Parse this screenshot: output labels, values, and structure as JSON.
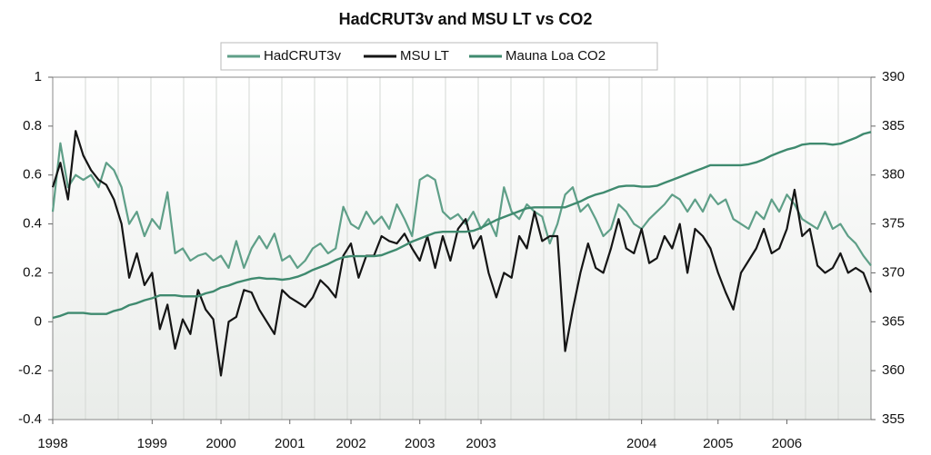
{
  "chart_data": {
    "type": "line",
    "title": "HadCRUT3v and MSU LT vs CO2",
    "xlim": [
      0,
      107
    ],
    "xticks": [
      {
        "value": 0,
        "label": "1998"
      },
      {
        "value": 13,
        "label": "1999"
      },
      {
        "value": 22,
        "label": "2000"
      },
      {
        "value": 31,
        "label": "2001"
      },
      {
        "value": 39,
        "label": "2002"
      },
      {
        "value": 48,
        "label": "2003"
      },
      {
        "value": 56,
        "label": "2003"
      },
      {
        "value": 77,
        "label": "2004"
      },
      {
        "value": 87,
        "label": "2005"
      },
      {
        "value": 96,
        "label": "2006"
      }
    ],
    "ylim": [
      -0.4,
      1
    ],
    "yticks": [
      -0.4,
      -0.2,
      0,
      0.2,
      0.4,
      0.6,
      0.8,
      1
    ],
    "y2lim": [
      355,
      390
    ],
    "y2ticks": [
      355,
      360,
      365,
      370,
      375,
      380,
      385,
      390
    ],
    "series": [
      {
        "name": "HadCRUT3v",
        "color": "#5f9f88",
        "values": [
          0.45,
          0.73,
          0.55,
          0.6,
          0.58,
          0.6,
          0.55,
          0.65,
          0.62,
          0.55,
          0.4,
          0.45,
          0.35,
          0.42,
          0.38,
          0.53,
          0.28,
          0.3,
          0.25,
          0.27,
          0.28,
          0.25,
          0.27,
          0.22,
          0.33,
          0.22,
          0.3,
          0.35,
          0.3,
          0.36,
          0.25,
          0.27,
          0.22,
          0.25,
          0.3,
          0.32,
          0.28,
          0.3,
          0.47,
          0.4,
          0.38,
          0.45,
          0.4,
          0.43,
          0.38,
          0.48,
          0.42,
          0.35,
          0.58,
          0.6,
          0.58,
          0.45,
          0.42,
          0.44,
          0.4,
          0.45,
          0.38,
          0.42,
          0.35,
          0.55,
          0.45,
          0.42,
          0.48,
          0.45,
          0.43,
          0.32,
          0.4,
          0.52,
          0.55,
          0.45,
          0.48,
          0.42,
          0.35,
          0.38,
          0.48,
          0.45,
          0.4,
          0.38,
          0.42,
          0.45,
          0.48,
          0.52,
          0.5,
          0.45,
          0.5,
          0.45,
          0.52,
          0.48,
          0.5,
          0.42,
          0.4,
          0.38,
          0.45,
          0.42,
          0.5,
          0.45,
          0.52,
          0.48,
          0.42,
          0.4,
          0.38,
          0.45,
          0.38,
          0.4,
          0.35,
          0.32,
          0.27,
          0.23
        ]
      },
      {
        "name": "MSU LT",
        "color": "#151515",
        "values": [
          0.55,
          0.65,
          0.5,
          0.78,
          0.68,
          0.62,
          0.58,
          0.56,
          0.5,
          0.4,
          0.18,
          0.28,
          0.15,
          0.2,
          -0.03,
          0.07,
          -0.11,
          0.01,
          -0.05,
          0.13,
          0.05,
          0.01,
          -0.22,
          0.0,
          0.02,
          0.13,
          0.12,
          0.05,
          0.0,
          -0.05,
          0.13,
          0.1,
          0.08,
          0.06,
          0.1,
          0.17,
          0.14,
          0.1,
          0.27,
          0.32,
          0.18,
          0.27,
          0.27,
          0.35,
          0.33,
          0.32,
          0.36,
          0.3,
          0.25,
          0.35,
          0.22,
          0.35,
          0.25,
          0.38,
          0.42,
          0.3,
          0.35,
          0.2,
          0.1,
          0.2,
          0.18,
          0.35,
          0.3,
          0.45,
          0.33,
          0.35,
          0.35,
          -0.12,
          0.05,
          0.2,
          0.32,
          0.22,
          0.2,
          0.3,
          0.42,
          0.3,
          0.28,
          0.38,
          0.24,
          0.26,
          0.35,
          0.3,
          0.4,
          0.2,
          0.38,
          0.35,
          0.3,
          0.2,
          0.12,
          0.05,
          0.2,
          0.25,
          0.3,
          0.38,
          0.28,
          0.3,
          0.38,
          0.54,
          0.35,
          0.38,
          0.23,
          0.2,
          0.22,
          0.28,
          0.2,
          0.22,
          0.2,
          0.12
        ]
      },
      {
        "name": "Mauna Loa CO2",
        "color": "#3f8a6f",
        "axis": "y2",
        "values": [
          365.4,
          365.6,
          365.9,
          365.9,
          365.9,
          365.8,
          365.8,
          365.8,
          366.1,
          366.3,
          366.7,
          366.9,
          367.2,
          367.4,
          367.7,
          367.7,
          367.7,
          367.6,
          367.6,
          367.6,
          367.9,
          368.1,
          368.5,
          368.7,
          369.0,
          369.2,
          369.4,
          369.5,
          369.4,
          369.4,
          369.3,
          369.4,
          369.6,
          369.9,
          370.3,
          370.6,
          370.9,
          371.3,
          371.6,
          371.7,
          371.7,
          371.7,
          371.7,
          371.8,
          372.1,
          372.4,
          372.8,
          373.2,
          373.5,
          373.8,
          374.1,
          374.2,
          374.2,
          374.2,
          374.2,
          374.3,
          374.6,
          375.0,
          375.4,
          375.7,
          376.0,
          376.3,
          376.6,
          376.7,
          376.7,
          376.7,
          376.7,
          376.7,
          377.0,
          377.3,
          377.7,
          378.0,
          378.2,
          378.5,
          378.8,
          378.9,
          378.9,
          378.8,
          378.8,
          378.9,
          379.2,
          379.5,
          379.8,
          380.1,
          380.4,
          380.7,
          381.0,
          381.0,
          381.0,
          381.0,
          381.0,
          381.1,
          381.3,
          381.6,
          382.0,
          382.3,
          382.6,
          382.8,
          383.1,
          383.2,
          383.2,
          383.2,
          383.1,
          383.2,
          383.5,
          383.8,
          384.2,
          384.4
        ]
      }
    ]
  }
}
